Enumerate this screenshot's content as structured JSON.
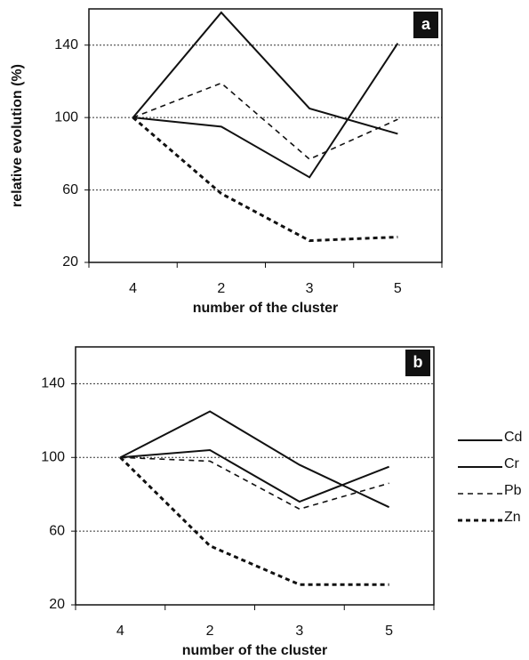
{
  "chart_data": [
    {
      "type": "line",
      "label": "a",
      "ylabel": "relative evolution (%)",
      "xlabel": "number of the cluster",
      "categories": [
        "4",
        "2",
        "3",
        "5"
      ],
      "ylim": [
        20,
        160
      ],
      "yticks": [
        20,
        60,
        100,
        140
      ],
      "grid": true,
      "series": [
        {
          "color": "#111111",
          "dash": "solid",
          "values": [
            100,
            158,
            105,
            91
          ]
        },
        {
          "color": "#111111",
          "dash": "solid",
          "values": [
            100,
            95,
            67,
            141
          ]
        },
        {
          "color": "#111111",
          "dash": "dashed",
          "values": [
            100,
            119,
            77,
            99
          ]
        },
        {
          "color": "#111111",
          "dash": "dotted",
          "values": [
            100,
            58,
            32,
            34
          ]
        }
      ]
    },
    {
      "type": "line",
      "label": "b",
      "xlabel": "number of the cluster",
      "categories": [
        "4",
        "2",
        "3",
        "5"
      ],
      "ylim": [
        20,
        160
      ],
      "yticks": [
        20,
        60,
        100,
        140
      ],
      "grid": true,
      "legend": "right",
      "series": [
        {
          "name": "Cd",
          "color": "#111111",
          "dash": "solid",
          "values": [
            100,
            125,
            96,
            73
          ]
        },
        {
          "name": "Cr",
          "color": "#111111",
          "dash": "solid",
          "values": [
            100,
            104,
            76,
            95
          ]
        },
        {
          "name": "Pb",
          "color": "#111111",
          "dash": "dashed",
          "values": [
            100,
            98,
            72,
            86
          ]
        },
        {
          "name": "Zn",
          "color": "#111111",
          "dash": "dotted",
          "values": [
            100,
            52,
            31,
            31
          ]
        }
      ]
    }
  ]
}
